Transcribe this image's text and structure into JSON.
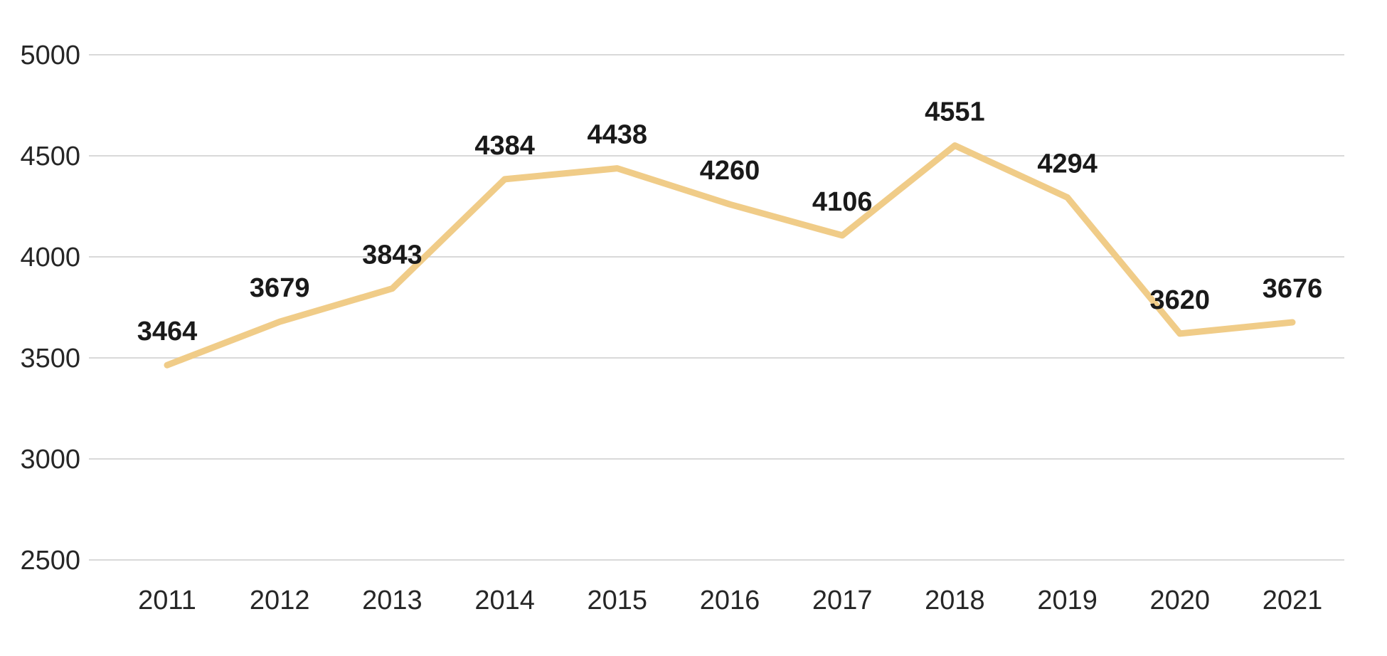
{
  "chart_data": {
    "type": "line",
    "title": "",
    "xlabel": "",
    "ylabel": "",
    "categories": [
      "2011",
      "2012",
      "2013",
      "2014",
      "2015",
      "2016",
      "2017",
      "2018",
      "2019",
      "2020",
      "2021"
    ],
    "values": [
      3464,
      3679,
      3843,
      4384,
      4438,
      4260,
      4106,
      4551,
      4294,
      3620,
      3676
    ],
    "data_labels": [
      "3464",
      "3679",
      "3843",
      "4384",
      "4438",
      "4260",
      "4106",
      "4551",
      "4294",
      "3620",
      "3676"
    ],
    "ylim": [
      2500,
      5000
    ],
    "y_ticks": [
      5000,
      4500,
      4000,
      3500,
      3000,
      2500
    ],
    "y_tick_labels": [
      "5000",
      "4500",
      "4000",
      "3500",
      "3000",
      "2500"
    ],
    "grid": "horizontal",
    "legend": "none",
    "data_label_position": "above",
    "colors": {
      "line": "#F0CC88",
      "gridline": "#D9D9D9",
      "axis_text": "#262626",
      "data_label_text": "#1a1a1a",
      "background": "#FFFFFF"
    }
  }
}
